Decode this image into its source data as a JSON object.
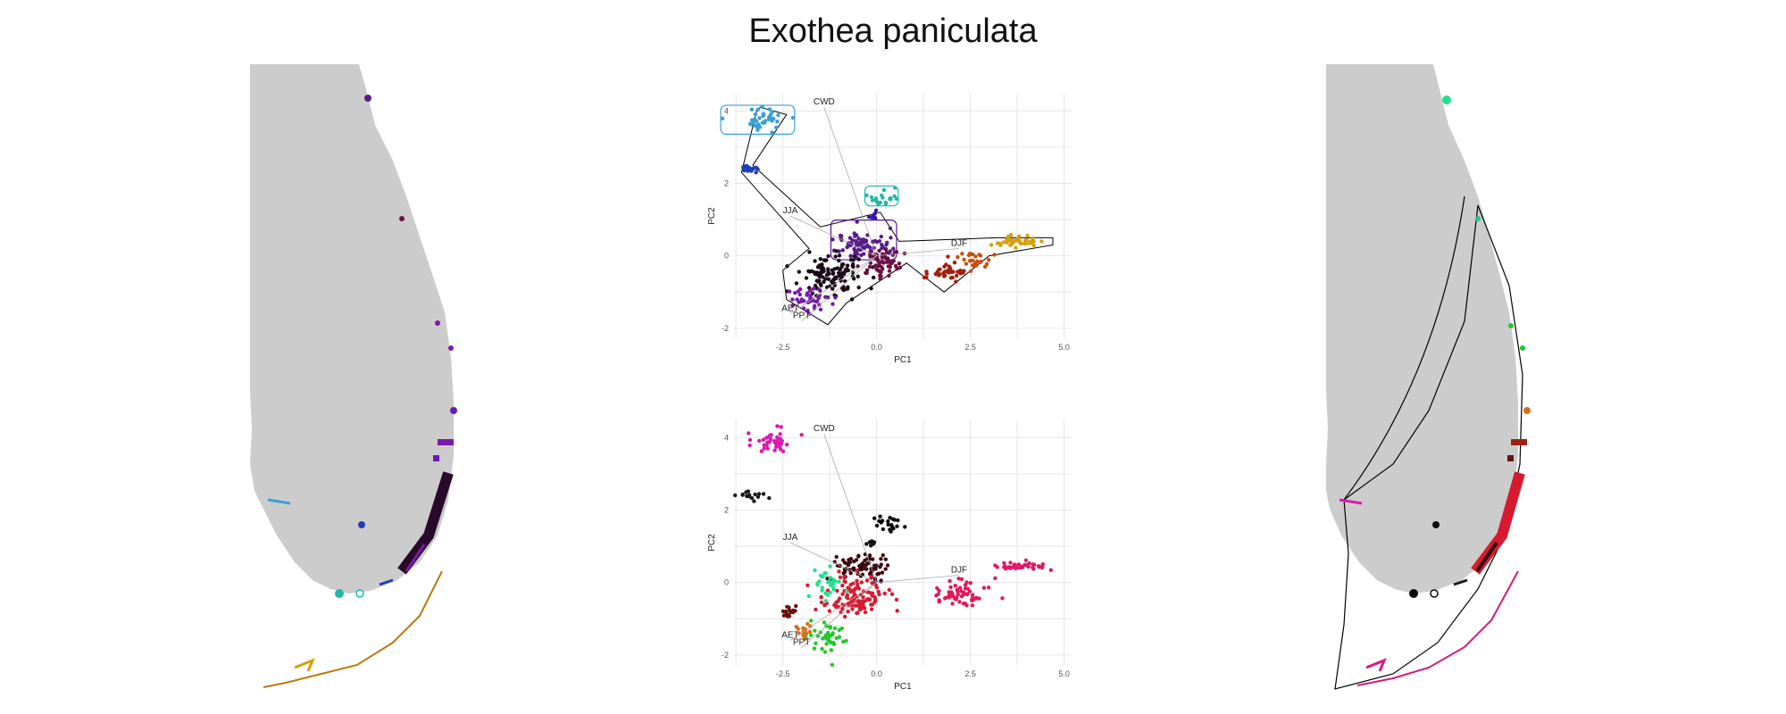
{
  "title": "Exothea paniculata",
  "colors": {
    "land": "#cccccc",
    "hull": "#000000",
    "vector": "#aaaaaa"
  },
  "chart_data": [
    {
      "type": "scatter",
      "panel": "top",
      "xlabel": "PC1",
      "ylabel": "PC2",
      "xlim": [
        -3.8,
        5.2
      ],
      "ylim": [
        -2.3,
        4.5
      ],
      "xticks": [
        -2.5,
        0.0,
        2.5,
        5.0
      ],
      "xtick_labels": [
        "-2.5",
        "0.0",
        "2.5",
        "5.0"
      ],
      "yticks": [
        -2,
        0,
        2,
        4
      ],
      "ytick_labels": [
        "-2",
        "0",
        "2",
        "4"
      ],
      "grid": true,
      "vectors": [
        {
          "label": "CWD",
          "x": -1.4,
          "y": 4.1
        },
        {
          "label": "JJA",
          "x": -2.3,
          "y": 1.1
        },
        {
          "label": "DJF",
          "x": 2.2,
          "y": 0.2
        },
        {
          "label": "AET",
          "x": -2.3,
          "y": -1.6
        },
        {
          "label": "PPT",
          "x": -2.0,
          "y": -1.8
        }
      ],
      "clusters": [
        {
          "cx": -3.0,
          "cy": 3.8,
          "sx": 0.4,
          "sy": 0.2,
          "n": 40,
          "color": "#3b9fd6",
          "hull": true
        },
        {
          "cx": -3.4,
          "cy": 2.4,
          "sx": 0.2,
          "sy": 0.1,
          "n": 16,
          "color": "#1f3fb8",
          "hull": false
        },
        {
          "cx": 0.3,
          "cy": 1.6,
          "sx": 0.3,
          "sy": 0.15,
          "n": 20,
          "color": "#1fb8a8",
          "hull": true
        },
        {
          "cx": -0.1,
          "cy": 1.1,
          "sx": 0.1,
          "sy": 0.1,
          "n": 8,
          "color": "#3a12b0",
          "hull": false
        },
        {
          "cx": -0.4,
          "cy": 0.3,
          "sx": 0.6,
          "sy": 0.3,
          "n": 80,
          "color": "#5a1a8a",
          "hull": true
        },
        {
          "cx": -1.2,
          "cy": -0.6,
          "sx": 0.6,
          "sy": 0.4,
          "n": 120,
          "color": "#1a0a1a",
          "hull": false
        },
        {
          "cx": -1.8,
          "cy": -1.2,
          "sx": 0.4,
          "sy": 0.3,
          "n": 40,
          "color": "#7a1aa8",
          "hull": false
        },
        {
          "cx": 0.2,
          "cy": -0.2,
          "sx": 0.4,
          "sy": 0.3,
          "n": 60,
          "color": "#6a1040",
          "hull": false
        },
        {
          "cx": 1.8,
          "cy": -0.5,
          "sx": 0.4,
          "sy": 0.2,
          "n": 40,
          "color": "#a02010",
          "hull": false
        },
        {
          "cx": 2.6,
          "cy": -0.1,
          "sx": 0.3,
          "sy": 0.2,
          "n": 30,
          "color": "#c85010",
          "hull": false
        },
        {
          "cx": 3.8,
          "cy": 0.4,
          "sx": 0.5,
          "sy": 0.1,
          "n": 40,
          "color": "#d4a010",
          "hull": false
        }
      ],
      "outer_hull": [
        [
          -3.1,
          4.1
        ],
        [
          -2.4,
          3.9
        ],
        [
          -3.3,
          2.5
        ],
        [
          -1.5,
          0.8
        ],
        [
          0.1,
          1.2
        ],
        [
          0.6,
          0.4
        ],
        [
          3.2,
          0.5
        ],
        [
          4.7,
          0.5
        ],
        [
          4.7,
          0.3
        ],
        [
          3.0,
          0.0
        ],
        [
          1.8,
          -1.0
        ],
        [
          0.8,
          -0.2
        ],
        [
          -0.8,
          -1.3
        ],
        [
          -1.3,
          -1.9
        ],
        [
          -2.4,
          -1.2
        ],
        [
          -2.5,
          -0.4
        ],
        [
          -1.8,
          0.2
        ],
        [
          -3.6,
          2.3
        ],
        [
          -3.2,
          4.0
        ]
      ]
    },
    {
      "type": "scatter",
      "panel": "bottom",
      "xlabel": "PC1",
      "ylabel": "PC2",
      "xlim": [
        -3.8,
        5.2
      ],
      "ylim": [
        -2.3,
        4.5
      ],
      "xticks": [
        -2.5,
        0.0,
        2.5,
        5.0
      ],
      "xtick_labels": [
        "-2.5",
        "0.0",
        "2.5",
        "5.0"
      ],
      "yticks": [
        -2,
        0,
        2,
        4
      ],
      "ytick_labels": [
        "-2",
        "0",
        "2",
        "4"
      ],
      "grid": true,
      "vectors": [
        {
          "label": "CWD",
          "x": -1.4,
          "y": 4.1
        },
        {
          "label": "JJA",
          "x": -2.3,
          "y": 1.1
        },
        {
          "label": "DJF",
          "x": 2.2,
          "y": 0.2
        },
        {
          "label": "AET",
          "x": -2.3,
          "y": -1.6
        },
        {
          "label": "PPT",
          "x": -2.0,
          "y": -1.8
        }
      ],
      "clusters": [
        {
          "cx": -2.8,
          "cy": 3.9,
          "sx": 0.4,
          "sy": 0.2,
          "n": 40,
          "color": "#d81ab0",
          "hull": false
        },
        {
          "cx": -3.3,
          "cy": 2.4,
          "sx": 0.25,
          "sy": 0.1,
          "n": 16,
          "color": "#1a1a1a",
          "hull": false
        },
        {
          "cx": 0.3,
          "cy": 1.6,
          "sx": 0.3,
          "sy": 0.15,
          "n": 20,
          "color": "#0a0a0a",
          "hull": false
        },
        {
          "cx": -0.1,
          "cy": 1.1,
          "sx": 0.1,
          "sy": 0.1,
          "n": 8,
          "color": "#111111",
          "hull": false
        },
        {
          "cx": -0.4,
          "cy": 0.4,
          "sx": 0.5,
          "sy": 0.3,
          "n": 80,
          "color": "#3a0a10",
          "hull": false
        },
        {
          "cx": -0.6,
          "cy": -0.4,
          "sx": 0.6,
          "sy": 0.4,
          "n": 120,
          "color": "#d81a30",
          "hull": false
        },
        {
          "cx": -1.4,
          "cy": 0.0,
          "sx": 0.3,
          "sy": 0.3,
          "n": 30,
          "color": "#22e08a",
          "hull": false
        },
        {
          "cx": -1.3,
          "cy": -1.5,
          "sx": 0.3,
          "sy": 0.3,
          "n": 40,
          "color": "#22c82a",
          "hull": false
        },
        {
          "cx": -2.3,
          "cy": -0.8,
          "sx": 0.2,
          "sy": 0.2,
          "n": 20,
          "color": "#6a1010",
          "hull": false
        },
        {
          "cx": -1.9,
          "cy": -1.3,
          "sx": 0.2,
          "sy": 0.2,
          "n": 16,
          "color": "#d87010",
          "hull": false
        },
        {
          "cx": 2.3,
          "cy": -0.3,
          "sx": 0.5,
          "sy": 0.3,
          "n": 60,
          "color": "#e01a5a",
          "hull": false
        },
        {
          "cx": 3.9,
          "cy": 0.45,
          "sx": 0.5,
          "sy": 0.08,
          "n": 40,
          "color": "#e01a6a",
          "hull": false
        }
      ]
    }
  ]
}
